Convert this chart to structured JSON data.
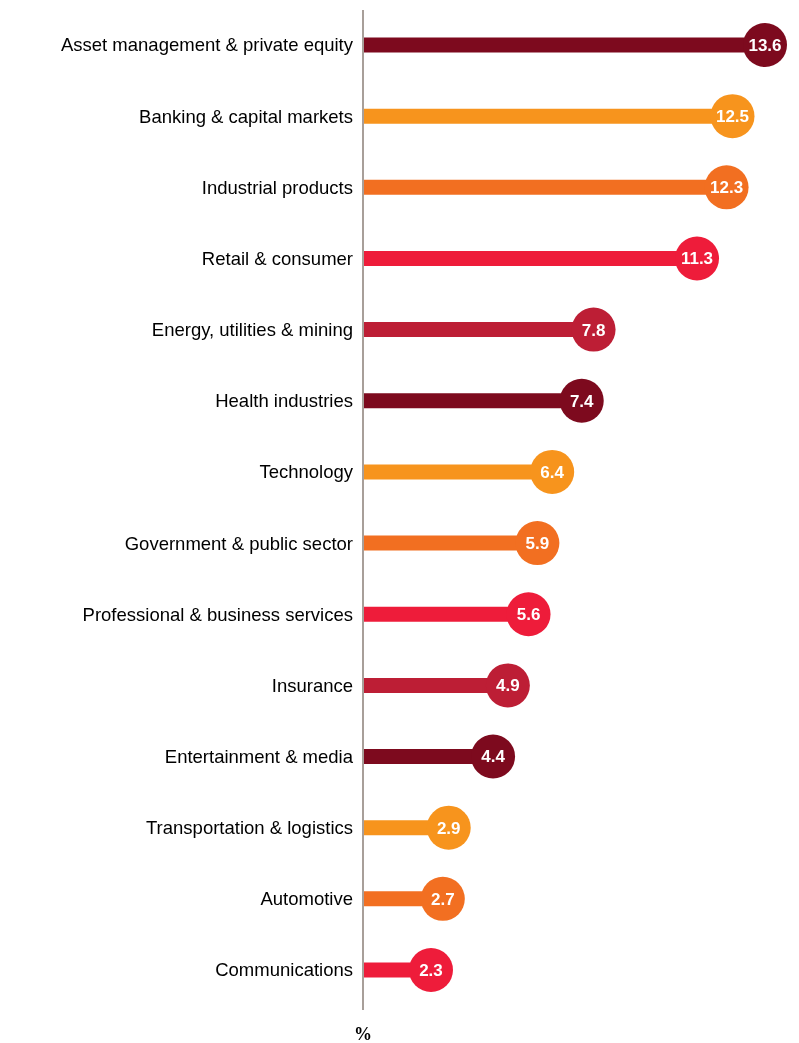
{
  "chart_data": {
    "type": "lollipop",
    "orientation": "horizontal",
    "xlabel": "%",
    "data_labels": true,
    "categories": [
      "Asset management & private equity",
      "Banking & capital markets",
      "Industrial products",
      "Retail & consumer",
      "Energy, utilities & mining",
      "Health industries",
      "Technology",
      "Government & public sector",
      "Professional & business services",
      "Insurance",
      "Entertainment & media",
      "Transportation & logistics",
      "Automotive",
      "Communications"
    ],
    "values": [
      13.6,
      12.5,
      12.3,
      11.3,
      7.8,
      7.4,
      6.4,
      5.9,
      5.6,
      4.9,
      4.4,
      2.9,
      2.7,
      2.3
    ],
    "colors": [
      "#7d0a1e",
      "#f7941d",
      "#f26f21",
      "#ee1c3a",
      "#bd1e35",
      "#7d0a1e",
      "#f7941d",
      "#f26f21",
      "#ee1c3a",
      "#bd1e35",
      "#7d0a1e",
      "#f7941d",
      "#f26f21",
      "#ee1c3a"
    ]
  }
}
